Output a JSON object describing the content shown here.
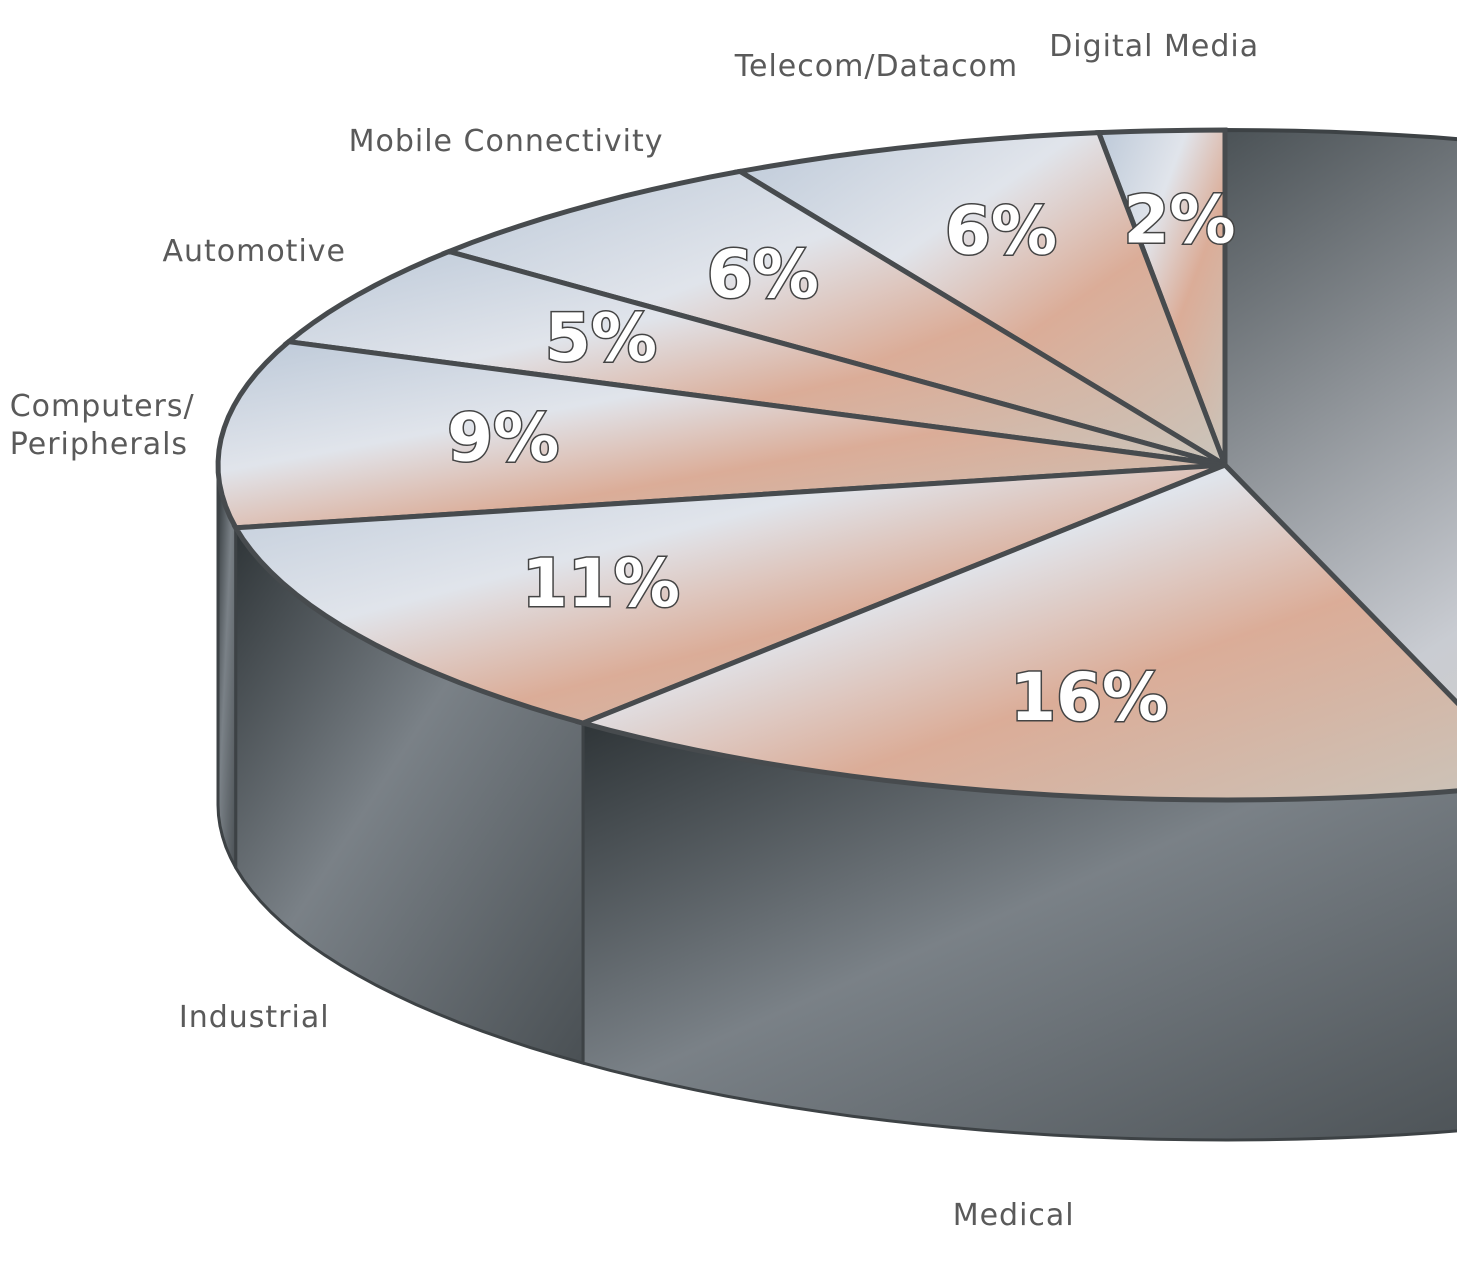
{
  "chart_data": {
    "type": "pie",
    "categories": [
      "Digital Media",
      "Telecom/Datacom",
      "Mobile Connectivity",
      "Automotive",
      "Computers/\nPeripherals",
      "Industrial",
      "Medical"
    ],
    "values": [
      2,
      6,
      6,
      5,
      9,
      11,
      16
    ],
    "value_labels": [
      "2%",
      "6%",
      "6%",
      "5%",
      "9%",
      "11%",
      "16%"
    ]
  }
}
